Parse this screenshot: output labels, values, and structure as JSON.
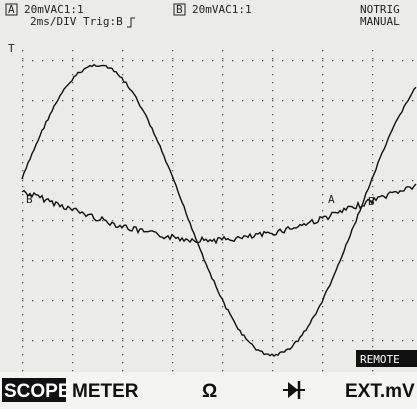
{
  "header": {
    "channel_a": "A",
    "channel_a_setting": "20mVAC1:1",
    "channel_b": "B",
    "channel_b_setting": "20mVAC1:1",
    "trigger_state": "NOTRIG",
    "timebase": "2ms/DIV Trig:B",
    "mode": "MANUAL"
  },
  "screen": {
    "trigger_marker": "T",
    "trace_b_marker": "B",
    "trace_a_label": "A",
    "trace_b_label": "B",
    "remote_badge": "REMOTE"
  },
  "menu": {
    "items": [
      "SCOPE",
      "METER",
      "Ω",
      "EXT.mV"
    ]
  }
}
